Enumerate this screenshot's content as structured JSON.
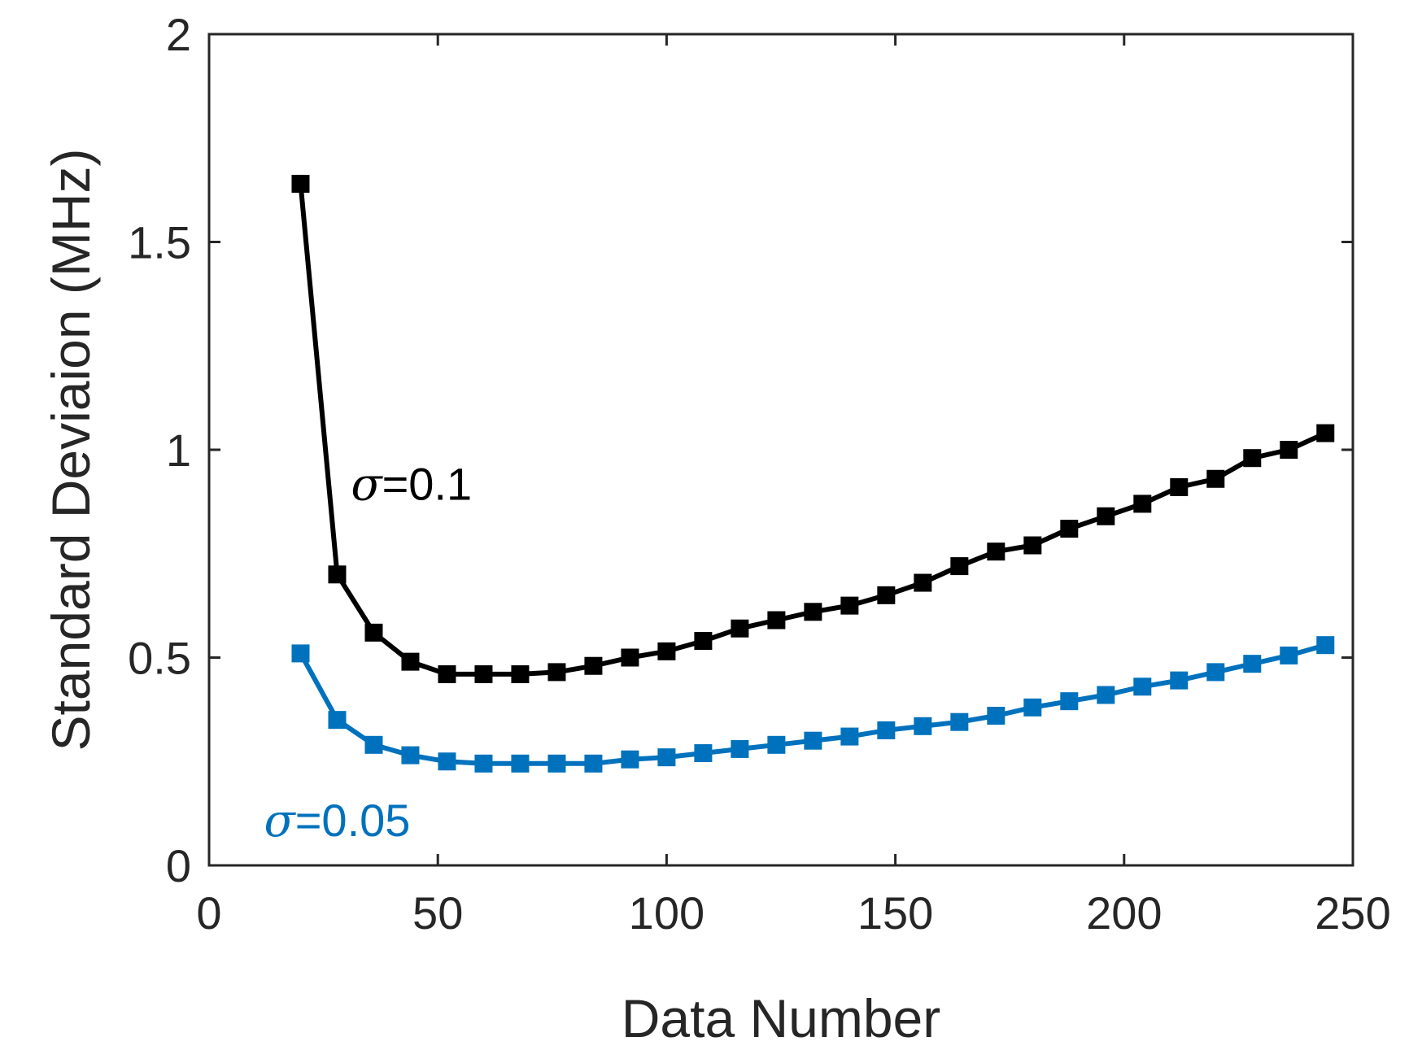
{
  "chart_data": {
    "type": "line",
    "title": "",
    "xlabel": "Data Number",
    "ylabel": "Standard Deviaion (MHz)",
    "xlim": [
      0,
      250
    ],
    "ylim": [
      0,
      2
    ],
    "xticks": [
      0,
      50,
      100,
      150,
      200,
      250
    ],
    "yticks": [
      0,
      0.5,
      1,
      1.5,
      2
    ],
    "xtick_labels": [
      "0",
      "50",
      "100",
      "150",
      "200",
      "250"
    ],
    "ytick_labels": [
      "0",
      "0.5",
      "1",
      "1.5",
      "2"
    ],
    "grid": false,
    "x": [
      20,
      28,
      36,
      44,
      52,
      60,
      68,
      76,
      84,
      92,
      100,
      108,
      116,
      124,
      132,
      140,
      148,
      156,
      164,
      172,
      180,
      188,
      196,
      204,
      212,
      220,
      228,
      236,
      244
    ],
    "series": [
      {
        "name": "σ=0.1",
        "color": "#000000",
        "marker": "square",
        "values": [
          1.64,
          0.7,
          0.56,
          0.49,
          0.46,
          0.46,
          0.46,
          0.465,
          0.48,
          0.5,
          0.515,
          0.54,
          0.57,
          0.59,
          0.61,
          0.625,
          0.65,
          0.68,
          0.72,
          0.755,
          0.77,
          0.81,
          0.84,
          0.87,
          0.91,
          0.93,
          0.98,
          1.0,
          1.04
        ]
      },
      {
        "name": "σ=0.05",
        "color": "#0072BD",
        "marker": "square",
        "values": [
          0.51,
          0.35,
          0.29,
          0.265,
          0.25,
          0.245,
          0.245,
          0.245,
          0.245,
          0.255,
          0.26,
          0.27,
          0.28,
          0.29,
          0.3,
          0.31,
          0.325,
          0.335,
          0.345,
          0.36,
          0.38,
          0.395,
          0.41,
          0.43,
          0.445,
          0.465,
          0.485,
          0.505,
          0.53
        ]
      }
    ],
    "annotations": [
      {
        "symbol": "σ",
        "text": "=0.1",
        "color": "#000000",
        "at_x": 31,
        "at_y": 0.88
      },
      {
        "symbol": "σ",
        "text": "=0.05",
        "color": "#0072BD",
        "at_x": 12,
        "at_y": 0.07
      }
    ]
  }
}
